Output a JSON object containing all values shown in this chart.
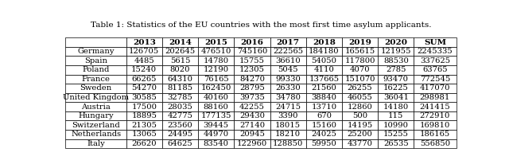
{
  "title": "Table 1: Statistics of the EU countries with the most first time asylum applicants.",
  "columns": [
    "",
    "2013",
    "2014",
    "2015",
    "2016",
    "2017",
    "2018",
    "2019",
    "2020",
    "SUM"
  ],
  "rows": [
    [
      "Germany",
      "126705",
      "202645",
      "476510",
      "745160",
      "222565",
      "184180",
      "165615",
      "121955",
      "2245335"
    ],
    [
      "Spain",
      "4485",
      "5615",
      "14780",
      "15755",
      "36610",
      "54050",
      "117800",
      "88530",
      "337625"
    ],
    [
      "Poland",
      "15240",
      "8020",
      "12190",
      "12305",
      "5045",
      "4110",
      "4070",
      "2785",
      "63765"
    ],
    [
      "France",
      "66265",
      "64310",
      "76165",
      "84270",
      "99330",
      "137665",
      "151070",
      "93470",
      "772545"
    ],
    [
      "Sweden",
      "54270",
      "81185",
      "162450",
      "28795",
      "26330",
      "21560",
      "26255",
      "16225",
      "417070"
    ],
    [
      "United Kingdom",
      "30585",
      "32785",
      "40160",
      "39735",
      "34780",
      "38840",
      "46055",
      "36041",
      "298981"
    ],
    [
      "Austria",
      "17500",
      "28035",
      "88160",
      "42255",
      "24715",
      "13710",
      "12860",
      "14180",
      "241415"
    ],
    [
      "Hungary",
      "18895",
      "42775",
      "177135",
      "29430",
      "3390",
      "670",
      "500",
      "115",
      "272910"
    ],
    [
      "Switzerland",
      "21305",
      "23560",
      "39445",
      "27140",
      "18015",
      "15160",
      "14195",
      "10990",
      "169810"
    ],
    [
      "Netherlands",
      "13065",
      "24495",
      "44970",
      "20945",
      "18210",
      "24025",
      "25200",
      "15255",
      "186165"
    ],
    [
      "Italy",
      "26620",
      "64625",
      "83540",
      "122960",
      "128850",
      "59950",
      "43770",
      "26535",
      "556850"
    ]
  ],
  "col_widths": [
    1.55,
    0.92,
    0.92,
    0.92,
    0.92,
    0.92,
    0.92,
    0.92,
    0.92,
    1.08
  ],
  "border_color": "#000000",
  "text_color": "#000000",
  "title_fontsize": 7.5,
  "header_fontsize": 7.5,
  "cell_fontsize": 7.2
}
